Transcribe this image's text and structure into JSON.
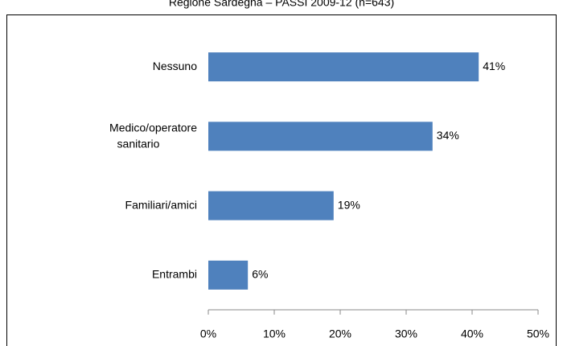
{
  "chart_data": {
    "type": "bar",
    "orientation": "horizontal",
    "title": "Regione Sardegna – PASSI 2009-12 (n=643)",
    "categories": [
      "Nessuno",
      "Medico/operatore sanitario",
      "Familiari/amici",
      "Entrambi"
    ],
    "values": [
      41,
      34,
      19,
      6
    ],
    "value_labels": [
      "41%",
      "34%",
      "19%",
      "6%"
    ],
    "color": "#4f81bd",
    "xlim": [
      0,
      50
    ],
    "xticks": [
      {
        "value": 0,
        "label": "0%"
      },
      {
        "value": 10,
        "label": "10%"
      },
      {
        "value": 20,
        "label": "20%"
      },
      {
        "value": 30,
        "label": "30%"
      },
      {
        "value": 40,
        "label": "40%"
      },
      {
        "value": 50,
        "label": "50%"
      }
    ]
  }
}
